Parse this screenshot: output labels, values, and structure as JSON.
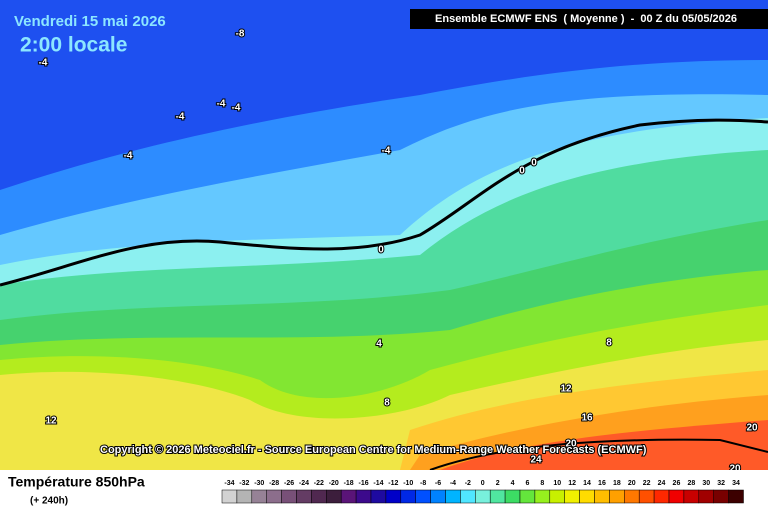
{
  "header": {
    "date": "Vendredi 15 mai 2026",
    "time": "2:00 locale",
    "model": "Ensemble ECMWF ENS  ( Moyenne )  -  00 Z du 05/05/2026"
  },
  "copyright": "Copyright © 2026 Meteociel.fr - Source European Centre for Medium-Range Weather Forecasts (ECMWF)",
  "footer": {
    "title": "Température 850hPa",
    "subtitle": "(+ 240h)"
  },
  "contour_labels": [
    -8,
    -4,
    -4,
    -4,
    -4,
    -4,
    -4,
    0,
    0,
    0,
    4,
    8,
    8,
    12,
    12,
    16,
    20,
    24,
    20,
    20
  ],
  "legend": {
    "values": [
      -34,
      -32,
      -30,
      -28,
      -26,
      -24,
      -22,
      -20,
      -18,
      -16,
      -14,
      -12,
      -10,
      -8,
      -6,
      -4,
      -2,
      0,
      2,
      4,
      6,
      8,
      10,
      12,
      14,
      16,
      18,
      20,
      22,
      24,
      26,
      28,
      30,
      32,
      34
    ],
    "colors": [
      "#d2d2d2",
      "#b4b4b4",
      "#968296",
      "#8c6e8c",
      "#785078",
      "#643c64",
      "#502850",
      "#3c1e3c",
      "#5a1478",
      "#3c0a8c",
      "#1e0aa0",
      "#0000c8",
      "#0028e6",
      "#0050ff",
      "#0082ff",
      "#00b4ff",
      "#50e6ff",
      "#78f0dc",
      "#50e6a0",
      "#3cdc64",
      "#64e63c",
      "#96f01e",
      "#c8f000",
      "#f0f000",
      "#ffdc00",
      "#ffbe00",
      "#ffa000",
      "#ff7800",
      "#ff5000",
      "#ff2800",
      "#f00000",
      "#c80000",
      "#a00000",
      "#780000",
      "#3c0000"
    ]
  }
}
